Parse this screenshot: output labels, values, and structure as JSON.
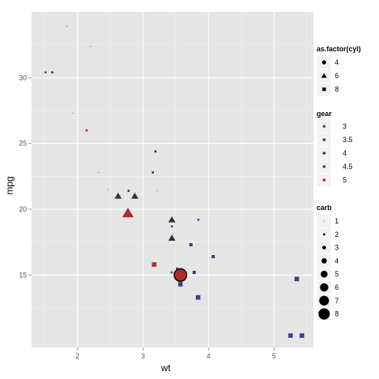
{
  "chart_data": {
    "type": "scatter",
    "xlabel": "wt",
    "ylabel": "mpg",
    "xlim": [
      1.3,
      5.6
    ],
    "ylim": [
      9.5,
      35
    ],
    "x_ticks": [
      2,
      3,
      4,
      5
    ],
    "y_ticks": [
      15,
      20,
      25,
      30
    ],
    "grid": true,
    "legend_position": "right",
    "legends": {
      "shape": {
        "title": "as.factor(cyl)",
        "entries": [
          {
            "label": "4",
            "shape": "circle"
          },
          {
            "label": "6",
            "shape": "triangle"
          },
          {
            "label": "8",
            "shape": "square"
          }
        ]
      },
      "colour": {
        "title": "gear",
        "entries": [
          {
            "label": "3",
            "color": "#3b3f8f"
          },
          {
            "label": "3.5",
            "color": "#3c3468"
          },
          {
            "label": "4",
            "color": "#3d2a3e"
          },
          {
            "label": "4.5",
            "color": "#6b2b34"
          },
          {
            "label": "5",
            "color": "#b22a2a"
          }
        ]
      },
      "size": {
        "title": "carb",
        "entries": [
          "1",
          "2",
          "3",
          "4",
          "5",
          "6",
          "7",
          "8"
        ]
      }
    },
    "colors": {
      "3": "#3b3f8f",
      "4": "#3d2a3e",
      "5": "#b22a2a"
    },
    "points": [
      {
        "wt": 2.62,
        "mpg": 21.0,
        "cyl": 6,
        "gear": 4,
        "carb": 4
      },
      {
        "wt": 2.875,
        "mpg": 21.0,
        "cyl": 6,
        "gear": 4,
        "carb": 4
      },
      {
        "wt": 2.32,
        "mpg": 22.8,
        "cyl": 4,
        "gear": 4,
        "carb": 1
      },
      {
        "wt": 3.215,
        "mpg": 21.4,
        "cyl": 6,
        "gear": 3,
        "carb": 1
      },
      {
        "wt": 3.44,
        "mpg": 18.7,
        "cyl": 8,
        "gear": 3,
        "carb": 2
      },
      {
        "wt": 3.46,
        "mpg": 18.1,
        "cyl": 6,
        "gear": 3,
        "carb": 1
      },
      {
        "wt": 3.57,
        "mpg": 14.3,
        "cyl": 8,
        "gear": 3,
        "carb": 4
      },
      {
        "wt": 3.19,
        "mpg": 24.4,
        "cyl": 4,
        "gear": 4,
        "carb": 2
      },
      {
        "wt": 3.15,
        "mpg": 22.8,
        "cyl": 4,
        "gear": 4,
        "carb": 2
      },
      {
        "wt": 3.44,
        "mpg": 19.2,
        "cyl": 6,
        "gear": 4,
        "carb": 4
      },
      {
        "wt": 3.44,
        "mpg": 17.8,
        "cyl": 6,
        "gear": 4,
        "carb": 4
      },
      {
        "wt": 4.07,
        "mpg": 16.4,
        "cyl": 8,
        "gear": 3,
        "carb": 3
      },
      {
        "wt": 3.73,
        "mpg": 17.3,
        "cyl": 8,
        "gear": 3,
        "carb": 3
      },
      {
        "wt": 3.78,
        "mpg": 15.2,
        "cyl": 8,
        "gear": 3,
        "carb": 3
      },
      {
        "wt": 5.25,
        "mpg": 10.4,
        "cyl": 8,
        "gear": 3,
        "carb": 4
      },
      {
        "wt": 5.424,
        "mpg": 10.4,
        "cyl": 8,
        "gear": 3,
        "carb": 4
      },
      {
        "wt": 5.345,
        "mpg": 14.7,
        "cyl": 8,
        "gear": 3,
        "carb": 4
      },
      {
        "wt": 2.2,
        "mpg": 32.4,
        "cyl": 4,
        "gear": 4,
        "carb": 1
      },
      {
        "wt": 1.615,
        "mpg": 30.4,
        "cyl": 4,
        "gear": 4,
        "carb": 2
      },
      {
        "wt": 1.835,
        "mpg": 33.9,
        "cyl": 4,
        "gear": 4,
        "carb": 1
      },
      {
        "wt": 2.465,
        "mpg": 21.5,
        "cyl": 4,
        "gear": 3,
        "carb": 1
      },
      {
        "wt": 3.52,
        "mpg": 15.5,
        "cyl": 8,
        "gear": 3,
        "carb": 2
      },
      {
        "wt": 3.435,
        "mpg": 15.2,
        "cyl": 8,
        "gear": 3,
        "carb": 2
      },
      {
        "wt": 3.84,
        "mpg": 13.3,
        "cyl": 8,
        "gear": 3,
        "carb": 4
      },
      {
        "wt": 3.845,
        "mpg": 19.2,
        "cyl": 8,
        "gear": 3,
        "carb": 2
      },
      {
        "wt": 1.935,
        "mpg": 27.3,
        "cyl": 4,
        "gear": 4,
        "carb": 1
      },
      {
        "wt": 2.14,
        "mpg": 26.0,
        "cyl": 4,
        "gear": 5,
        "carb": 2
      },
      {
        "wt": 1.513,
        "mpg": 30.4,
        "cyl": 4,
        "gear": 5,
        "carb": 2
      },
      {
        "wt": 3.17,
        "mpg": 15.8,
        "cyl": 8,
        "gear": 5,
        "carb": 4
      },
      {
        "wt": 2.77,
        "mpg": 19.7,
        "cyl": 6,
        "gear": 5,
        "carb": 6
      },
      {
        "wt": 3.57,
        "mpg": 15.0,
        "cyl": 8,
        "gear": 5,
        "carb": 8
      },
      {
        "wt": 2.78,
        "mpg": 21.4,
        "cyl": 4,
        "gear": 4,
        "carb": 2
      }
    ]
  }
}
